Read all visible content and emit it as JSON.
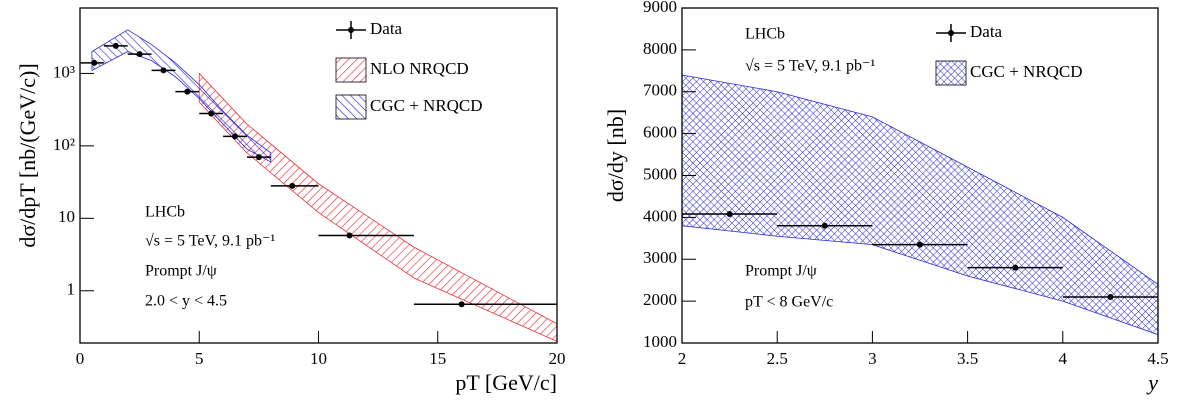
{
  "chart_data": [
    {
      "type": "errorbar",
      "log_y": true,
      "xlabel": "pT [GeV/c]",
      "ylabel": "dσ/dpT [nb/(GeV/c)]",
      "xlim": [
        0,
        20
      ],
      "ylim": [
        0.19,
        8000
      ],
      "xticks": [
        0,
        5,
        10,
        15,
        20
      ],
      "yticks": [
        1,
        10,
        {
          "value": 100,
          "label": "10²"
        },
        {
          "value": 1000,
          "label": "10³"
        }
      ],
      "annotations": [
        "LHCb",
        "√s = 5 TeV, 9.1 pb⁻¹",
        "Prompt J/ψ",
        "2.0 < y < 4.5"
      ],
      "series": [
        {
          "name": "Data",
          "type": "errorbar",
          "color": "#000000",
          "x": [
            0.6,
            1.5,
            2.5,
            3.5,
            4.5,
            5.5,
            6.5,
            7.5,
            8.9,
            11.3,
            16
          ],
          "bins": [
            0,
            1,
            2,
            3,
            4,
            5,
            6,
            7,
            8,
            10,
            14,
            20
          ],
          "values": [
            1400,
            2400,
            1850,
            1100,
            560,
            280,
            135,
            70,
            28,
            5.8,
            0.65
          ]
        },
        {
          "name": "NLO NRQCD",
          "type": "band",
          "color": "#e8333a",
          "x": [
            5,
            7,
            10,
            14,
            20
          ],
          "upper": [
            1000,
            200,
            30,
            4,
            0.35
          ],
          "lower": [
            400,
            80,
            12,
            1.5,
            0.2
          ]
        },
        {
          "name": "CGC + NRQCD",
          "type": "band",
          "color": "#2a2ad8",
          "x": [
            0.5,
            2,
            3,
            4,
            5,
            6,
            7,
            8
          ],
          "upper": [
            2000,
            4000,
            2500,
            1400,
            700,
            300,
            140,
            80
          ],
          "lower": [
            1100,
            2000,
            1500,
            900,
            450,
            200,
            90,
            60
          ]
        }
      ]
    },
    {
      "type": "errorbar",
      "log_y": false,
      "xlabel": "y",
      "ylabel": "dσ/dy [nb]",
      "xlim": [
        2,
        4.5
      ],
      "ylim": [
        1000,
        9000
      ],
      "xticks": [
        2,
        2.5,
        3,
        3.5,
        4,
        4.5
      ],
      "yticks": [
        1000,
        2000,
        3000,
        4000,
        5000,
        6000,
        7000,
        8000,
        9000
      ],
      "annotations": [
        "LHCb",
        "√s = 5 TeV, 9.1 pb⁻¹",
        "Prompt J/ψ",
        "pT < 8 GeV/c"
      ],
      "series": [
        {
          "name": "Data",
          "type": "errorbar",
          "color": "#000000",
          "x": [
            2.25,
            2.75,
            3.25,
            3.75,
            4.25
          ],
          "bins": [
            2,
            2.5,
            3,
            3.5,
            4,
            4.5
          ],
          "values": [
            4080,
            3800,
            3350,
            2800,
            2100
          ]
        },
        {
          "name": "CGC + NRQCD",
          "type": "band",
          "color": "#2a2ad8",
          "crosshatch": true,
          "x": [
            2,
            2.5,
            3,
            3.5,
            4,
            4.5
          ],
          "upper": [
            7400,
            7000,
            6400,
            5200,
            4000,
            2400
          ],
          "lower": [
            3800,
            3550,
            3350,
            2600,
            2000,
            1200
          ]
        }
      ]
    }
  ]
}
